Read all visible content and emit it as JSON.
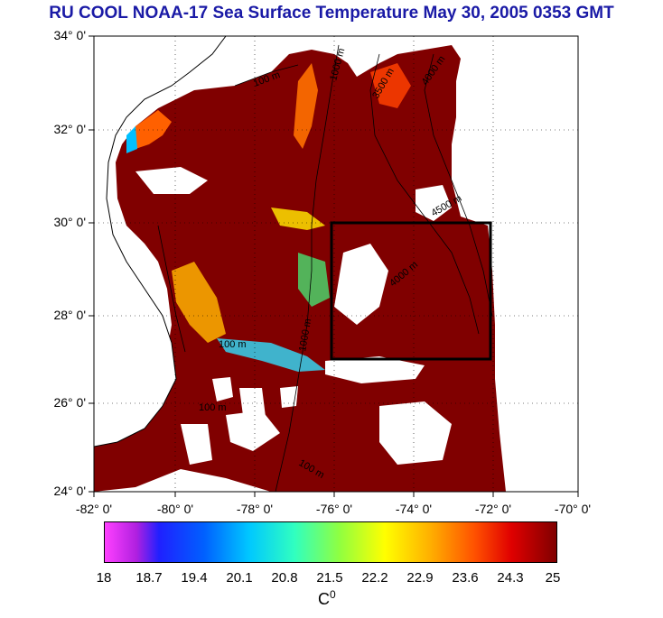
{
  "title": "RU COOL  NOAA-17 Sea Surface Temperature May 30, 2005 0353 GMT",
  "map": {
    "lat_labels": [
      "34° 0'",
      "32° 0'",
      "30° 0'",
      "28° 0'",
      "26° 0'",
      "24° 0'"
    ],
    "lon_labels": [
      "-82° 0'",
      "-80° 0'",
      "-78° 0'",
      "-76° 0'",
      "-74° 0'",
      "-72° 0'",
      "-70° 0'"
    ],
    "contour_labels": [
      "100 m",
      "1000 m",
      "3500 m",
      "4000 m",
      "4500 m",
      "100 m",
      "1000 m",
      "4000 m",
      "100 m",
      "100 m"
    ],
    "colors": {
      "land": "#ffffff",
      "warm_water": "#800000",
      "box": "#000000"
    }
  },
  "colorbar": {
    "ticks": [
      "18",
      "18.7",
      "19.4",
      "20.1",
      "20.8",
      "21.5",
      "22.2",
      "22.9",
      "23.6",
      "24.3",
      "25"
    ],
    "unit_base": "C",
    "unit_sup": "0"
  }
}
